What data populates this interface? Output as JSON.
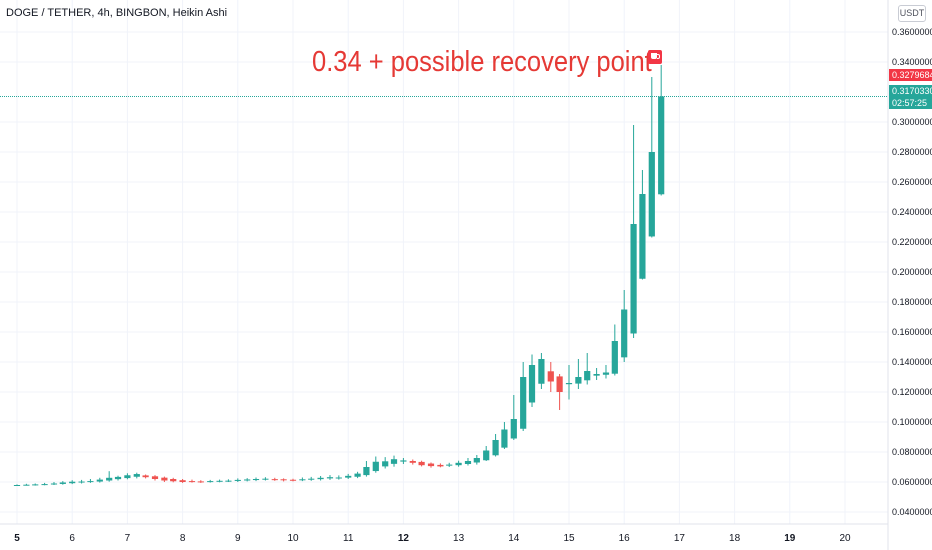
{
  "header": {
    "title": "DOGE / TETHER, 4h, BINGBON, Heikin Ashi"
  },
  "annotation": "0.34 + possible recovery point",
  "currency": "USDT",
  "badges": {
    "high_price": "0.3279684",
    "last_price": "0.3170330",
    "countdown": "02:57:25"
  },
  "colors": {
    "up": "#26a69a",
    "down": "#ef5350",
    "annotation": "#e53935",
    "grid": "#f0f3fa",
    "price_line": "#26a69a"
  },
  "chart_data": {
    "type": "candlestick",
    "x": "date (days of month)",
    "ylim": [
      0.03,
      0.37
    ],
    "xlim": [
      5,
      20.8
    ],
    "y_ticks": [
      "0.3600000",
      "0.3400000",
      "0.3000000",
      "0.2800000",
      "0.2600000",
      "0.2400000",
      "0.2200000",
      "0.2000000",
      "0.1800000",
      "0.1600000",
      "0.1400000",
      "0.1200000",
      "0.1000000",
      "0.0800000",
      "0.0600000",
      "0.0400000"
    ],
    "x_ticks": [
      "5",
      "6",
      "7",
      "8",
      "9",
      "10",
      "11",
      "12",
      "13",
      "14",
      "15",
      "16",
      "17",
      "18",
      "19",
      "20"
    ],
    "x_tick_values": [
      5,
      6,
      7,
      8,
      9,
      10,
      11,
      12,
      13,
      14,
      15,
      16,
      17,
      18,
      19,
      20
    ],
    "last_price": 0.317033,
    "candles": [
      [
        5.0,
        0.0578,
        0.058,
        0.0584,
        0.0574
      ],
      [
        5.17,
        0.058,
        0.0582,
        0.0588,
        0.0576
      ],
      [
        5.33,
        0.058,
        0.0584,
        0.059,
        0.0576
      ],
      [
        5.5,
        0.0582,
        0.0586,
        0.0594,
        0.0578
      ],
      [
        5.67,
        0.0584,
        0.059,
        0.06,
        0.058
      ],
      [
        5.83,
        0.0587,
        0.0597,
        0.0606,
        0.0582
      ],
      [
        6.0,
        0.0592,
        0.0602,
        0.0612,
        0.0586
      ],
      [
        6.17,
        0.0597,
        0.0603,
        0.0614,
        0.059
      ],
      [
        6.33,
        0.06,
        0.0606,
        0.062,
        0.0594
      ],
      [
        6.5,
        0.0603,
        0.0616,
        0.0628,
        0.0596
      ],
      [
        6.67,
        0.061,
        0.0628,
        0.0672,
        0.0602
      ],
      [
        6.83,
        0.0619,
        0.0634,
        0.0642,
        0.061
      ],
      [
        7.0,
        0.0626,
        0.0645,
        0.0658,
        0.0618
      ],
      [
        7.17,
        0.0635,
        0.0653,
        0.0662,
        0.0624
      ],
      [
        7.33,
        0.0644,
        0.0632,
        0.065,
        0.0624
      ],
      [
        7.5,
        0.0638,
        0.062,
        0.0646,
        0.061
      ],
      [
        7.67,
        0.0629,
        0.061,
        0.0636,
        0.06
      ],
      [
        7.83,
        0.062,
        0.0605,
        0.0628,
        0.0598
      ],
      [
        8.0,
        0.0612,
        0.06,
        0.062,
        0.0594
      ],
      [
        8.17,
        0.0606,
        0.0602,
        0.0616,
        0.0596
      ],
      [
        8.33,
        0.0604,
        0.06,
        0.0612,
        0.0594
      ],
      [
        8.5,
        0.0602,
        0.0606,
        0.0614,
        0.0596
      ],
      [
        8.67,
        0.0604,
        0.0608,
        0.0616,
        0.0598
      ],
      [
        8.83,
        0.0606,
        0.0609,
        0.0618,
        0.06
      ],
      [
        9.0,
        0.0607,
        0.0614,
        0.0624,
        0.06
      ],
      [
        9.17,
        0.061,
        0.0617,
        0.0626,
        0.0604
      ],
      [
        9.33,
        0.0613,
        0.062,
        0.063,
        0.0606
      ],
      [
        9.5,
        0.0616,
        0.0622,
        0.0632,
        0.061
      ],
      [
        9.67,
        0.0619,
        0.0616,
        0.0628,
        0.0608
      ],
      [
        9.83,
        0.0618,
        0.0612,
        0.0624,
        0.0604
      ],
      [
        10.0,
        0.0615,
        0.0612,
        0.0622,
        0.0604
      ],
      [
        10.17,
        0.0614,
        0.0618,
        0.063,
        0.0606
      ],
      [
        10.33,
        0.0616,
        0.0622,
        0.0634,
        0.0608
      ],
      [
        10.5,
        0.0619,
        0.0628,
        0.064,
        0.061
      ],
      [
        10.67,
        0.0624,
        0.0632,
        0.0646,
        0.0614
      ],
      [
        10.83,
        0.0628,
        0.063,
        0.0644,
        0.0616
      ],
      [
        11.0,
        0.0629,
        0.0641,
        0.0654,
        0.062
      ],
      [
        11.17,
        0.0635,
        0.0656,
        0.0668,
        0.0626
      ],
      [
        11.33,
        0.0646,
        0.07,
        0.074,
        0.0636
      ],
      [
        11.5,
        0.0673,
        0.0735,
        0.077,
        0.0662
      ],
      [
        11.67,
        0.0704,
        0.0738,
        0.0766,
        0.069
      ],
      [
        11.83,
        0.0721,
        0.0752,
        0.0776,
        0.0702
      ],
      [
        12.0,
        0.0736,
        0.0744,
        0.076,
        0.072
      ],
      [
        12.17,
        0.074,
        0.0728,
        0.075,
        0.0716
      ],
      [
        12.33,
        0.0734,
        0.0712,
        0.0742,
        0.0704
      ],
      [
        12.5,
        0.0723,
        0.0706,
        0.073,
        0.0696
      ],
      [
        12.67,
        0.0714,
        0.0704,
        0.0724,
        0.0698
      ],
      [
        12.83,
        0.0709,
        0.0716,
        0.0728,
        0.07
      ],
      [
        13.0,
        0.0712,
        0.0728,
        0.0742,
        0.0702
      ],
      [
        13.17,
        0.072,
        0.074,
        0.076,
        0.071
      ],
      [
        13.33,
        0.073,
        0.076,
        0.078,
        0.0716
      ],
      [
        13.5,
        0.0745,
        0.081,
        0.084,
        0.074
      ],
      [
        13.67,
        0.0778,
        0.088,
        0.092,
        0.077
      ],
      [
        13.83,
        0.0829,
        0.095,
        0.1,
        0.082
      ],
      [
        14.0,
        0.089,
        0.102,
        0.118,
        0.088
      ],
      [
        14.17,
        0.0955,
        0.13,
        0.14,
        0.094
      ],
      [
        14.33,
        0.113,
        0.138,
        0.145,
        0.11
      ],
      [
        14.5,
        0.1255,
        0.142,
        0.146,
        0.122
      ],
      [
        14.67,
        0.1338,
        0.127,
        0.14,
        0.12
      ],
      [
        14.83,
        0.1304,
        0.12,
        0.132,
        0.108
      ],
      [
        15.0,
        0.1252,
        0.126,
        0.138,
        0.115
      ],
      [
        15.17,
        0.1256,
        0.13,
        0.142,
        0.122
      ],
      [
        15.33,
        0.1278,
        0.134,
        0.146,
        0.125
      ],
      [
        15.5,
        0.1309,
        0.132,
        0.136,
        0.128
      ],
      [
        15.67,
        0.1315,
        0.133,
        0.138,
        0.129
      ],
      [
        15.83,
        0.1322,
        0.154,
        0.165,
        0.131
      ],
      [
        16.0,
        0.1431,
        0.175,
        0.188,
        0.14
      ],
      [
        16.17,
        0.159,
        0.232,
        0.298,
        0.156
      ],
      [
        16.33,
        0.1955,
        0.252,
        0.268,
        0.195
      ],
      [
        16.5,
        0.2237,
        0.28,
        0.33,
        0.223
      ],
      [
        16.67,
        0.2518,
        0.317,
        0.338,
        0.251
      ]
    ]
  }
}
